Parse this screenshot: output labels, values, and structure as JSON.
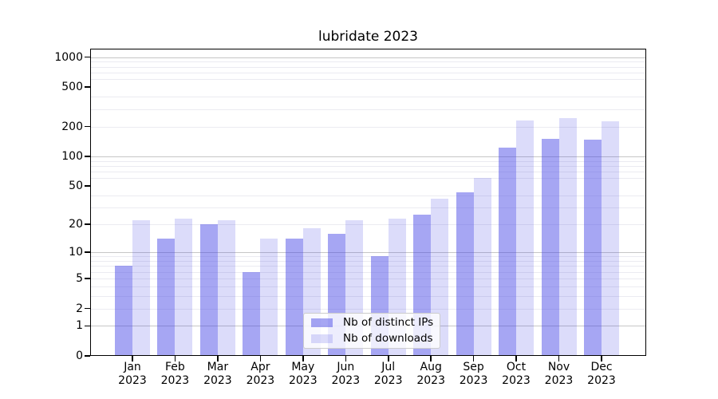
{
  "chart_data": {
    "type": "bar",
    "title": "lubridate 2023",
    "categories": [
      "Jan",
      "Feb",
      "Mar",
      "Apr",
      "May",
      "Jun",
      "Jul",
      "Aug",
      "Sep",
      "Oct",
      "Nov",
      "Dec"
    ],
    "x_year_line": "2023",
    "series": [
      {
        "name": "Nb of distinct IPs",
        "color": "rgba(70,70,230,0.48)",
        "values": [
          7,
          14,
          20,
          6,
          14,
          16,
          9,
          25,
          43,
          123,
          150,
          148
        ]
      },
      {
        "name": "Nb of downloads",
        "color": "rgba(70,70,230,0.19)",
        "values": [
          22,
          23,
          22,
          14,
          18,
          22,
          23,
          37,
          60,
          230,
          245,
          225
        ]
      }
    ],
    "yscale": "log1p",
    "yticks": [
      0,
      1,
      2,
      5,
      10,
      20,
      50,
      100,
      200,
      500,
      1000
    ],
    "major_gridline_values": [
      1,
      10,
      100,
      1000
    ],
    "minor_gridline_values": [
      2,
      3,
      4,
      5,
      6,
      7,
      8,
      9,
      20,
      30,
      40,
      60,
      70,
      80,
      90,
      200,
      300,
      400,
      600,
      700,
      800,
      900
    ],
    "ylim": [
      0,
      1190
    ],
    "grid": true,
    "legend_position": "lower center",
    "colors": {
      "bar_base": "#4646e6",
      "major_grid": "#c6c6c6",
      "minor_grid": "#ebebf1",
      "axis": "#000000"
    }
  }
}
